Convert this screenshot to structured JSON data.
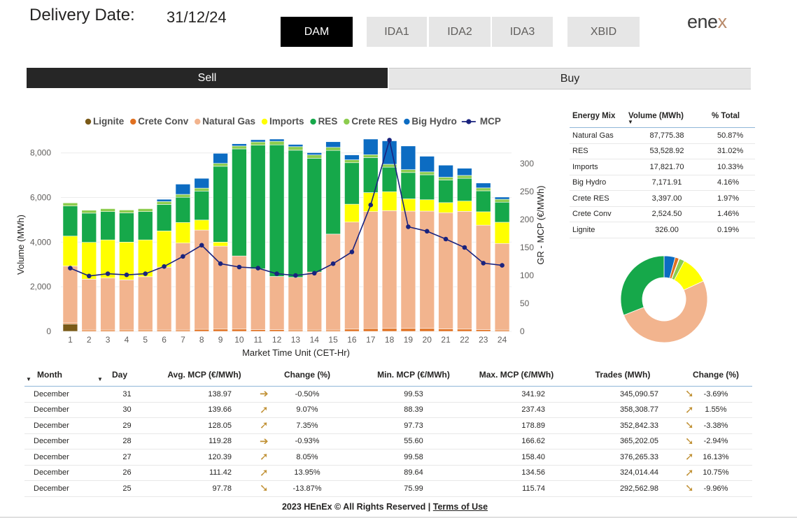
{
  "header": {
    "delivery_label": "Delivery Date:",
    "delivery_date": "31/12/24",
    "market_tabs": [
      {
        "label": "DAM",
        "active": true
      },
      {
        "label": "IDA1",
        "active": false
      },
      {
        "label": "IDA2",
        "active": false
      },
      {
        "label": "IDA3",
        "active": false
      },
      {
        "label": "XBID",
        "active": false
      }
    ],
    "logo_text": "ene",
    "logo_x": "x"
  },
  "side_tabs": [
    {
      "label": "Sell",
      "active": true
    },
    {
      "label": "Buy",
      "active": false
    }
  ],
  "chart_data": {
    "type": "bar",
    "stacked": true,
    "xlabel": "Market Time Unit (CET-Hr)",
    "ylabel": "Volume (MWh)",
    "y2label": "GR - MCP (€/MWh)",
    "ylim": [
      0,
      8900
    ],
    "y2lim": [
      0,
      355
    ],
    "yticks": [
      0,
      2000,
      4000,
      6000,
      8000
    ],
    "ytick_labels": [
      "0",
      "2,000",
      "4,000",
      "6,000",
      "8,000"
    ],
    "y2ticks": [
      0,
      50,
      100,
      150,
      200,
      250,
      300
    ],
    "legend_position": "top",
    "categories": [
      "1",
      "2",
      "3",
      "4",
      "5",
      "6",
      "7",
      "8",
      "9",
      "10",
      "11",
      "12",
      "13",
      "14",
      "15",
      "16",
      "17",
      "18",
      "19",
      "20",
      "21",
      "22",
      "23",
      "24"
    ],
    "series": [
      {
        "name": "Lignite",
        "color": "#7a5a18",
        "values": [
          330,
          0,
          0,
          0,
          0,
          0,
          0,
          0,
          0,
          0,
          0,
          0,
          0,
          0,
          0,
          0,
          0,
          0,
          0,
          0,
          0,
          0,
          0,
          0
        ]
      },
      {
        "name": "Crete Conv",
        "color": "#e07020",
        "values": [
          50,
          60,
          60,
          60,
          60,
          60,
          60,
          90,
          100,
          100,
          80,
          80,
          60,
          60,
          60,
          100,
          120,
          130,
          130,
          130,
          110,
          100,
          80,
          60
        ]
      },
      {
        "name": "Natural Gas",
        "color": "#f2b48e",
        "values": [
          2550,
          2280,
          2330,
          2250,
          2390,
          2820,
          3900,
          4450,
          3720,
          3280,
          2720,
          2380,
          2360,
          2600,
          4300,
          4800,
          5250,
          5280,
          5260,
          5260,
          5210,
          5280,
          4680,
          3880
        ]
      },
      {
        "name": "Imports",
        "color": "#ffff00",
        "values": [
          1340,
          1650,
          1710,
          1690,
          1650,
          1620,
          920,
          450,
          180,
          0,
          0,
          0,
          0,
          0,
          0,
          800,
          850,
          850,
          550,
          510,
          450,
          460,
          600,
          950
        ]
      },
      {
        "name": "RES",
        "color": "#16a84a",
        "values": [
          1350,
          1310,
          1270,
          1310,
          1270,
          1190,
          1130,
          1300,
          3400,
          4800,
          5550,
          5900,
          5700,
          5100,
          3750,
          1860,
          1570,
          1100,
          1180,
          1120,
          1010,
          1020,
          940,
          900
        ]
      },
      {
        "name": "Crete RES",
        "color": "#8ccc4e",
        "values": [
          140,
          130,
          130,
          130,
          130,
          130,
          130,
          130,
          130,
          130,
          140,
          160,
          160,
          150,
          140,
          130,
          130,
          130,
          130,
          130,
          130,
          130,
          130,
          130
        ]
      },
      {
        "name": "Big Hydro",
        "color": "#0c6cc2",
        "values": [
          0,
          0,
          0,
          0,
          0,
          100,
          460,
          440,
          450,
          100,
          100,
          100,
          100,
          100,
          250,
          220,
          700,
          1050,
          1060,
          700,
          540,
          320,
          220,
          100
        ]
      }
    ],
    "line": {
      "name": "MCP",
      "color": "#1a237e",
      "values": [
        113,
        99,
        103,
        101,
        103,
        116,
        134,
        154,
        121,
        115,
        113,
        103,
        100,
        104,
        121,
        142,
        226,
        342,
        187,
        179,
        165,
        150,
        122,
        118
      ]
    }
  },
  "energy_mix": {
    "headers": {
      "source": "Energy Mix",
      "volume": "Volume (MWh)",
      "pct": "% Total"
    },
    "rows": [
      {
        "name": "Natural Gas",
        "volume": "87,775.38",
        "pct": "50.87%",
        "value": 50.87,
        "color": "#f2b48e"
      },
      {
        "name": "RES",
        "volume": "53,528.92",
        "pct": "31.02%",
        "value": 31.02,
        "color": "#16a84a"
      },
      {
        "name": "Imports",
        "volume": "17,821.70",
        "pct": "10.33%",
        "value": 10.33,
        "color": "#ffff00"
      },
      {
        "name": "Big Hydro",
        "volume": "7,171.91",
        "pct": "4.16%",
        "value": 4.16,
        "color": "#0c6cc2"
      },
      {
        "name": "Crete RES",
        "volume": "3,397.00",
        "pct": "1.97%",
        "value": 1.97,
        "color": "#8ccc4e"
      },
      {
        "name": "Crete Conv",
        "volume": "2,524.50",
        "pct": "1.46%",
        "value": 1.46,
        "color": "#e07020"
      },
      {
        "name": "Lignite",
        "volume": "326.00",
        "pct": "0.19%",
        "value": 0.19,
        "color": "#7a5a18"
      }
    ]
  },
  "daily_table": {
    "headers": [
      "Month",
      "Day",
      "Avg. MCP (€/MWh)",
      "Change (%)",
      "Min. MCP (€/MWh)",
      "Max. MCP (€/MWh)",
      "Trades (MWh)",
      "Change (%)"
    ],
    "rows": [
      {
        "month": "December",
        "day": "31",
        "avg": "138.97",
        "mcp_arrow": "right-arrow-icon",
        "mcp_change": "-0.50%",
        "min": "99.53",
        "max": "341.92",
        "trades": "345,090.57",
        "trade_arrow": "down-right-arrow-icon",
        "trade_change": "-3.69%"
      },
      {
        "month": "December",
        "day": "30",
        "avg": "139.66",
        "mcp_arrow": "up-right-arrow-icon",
        "mcp_change": "9.07%",
        "min": "88.39",
        "max": "237.43",
        "trades": "358,308.77",
        "trade_arrow": "up-right-arrow-icon",
        "trade_change": "1.55%"
      },
      {
        "month": "December",
        "day": "29",
        "avg": "128.05",
        "mcp_arrow": "up-right-arrow-icon",
        "mcp_change": "7.35%",
        "min": "97.73",
        "max": "178.89",
        "trades": "352,842.33",
        "trade_arrow": "down-right-arrow-icon",
        "trade_change": "-3.38%"
      },
      {
        "month": "December",
        "day": "28",
        "avg": "119.28",
        "mcp_arrow": "right-arrow-icon",
        "mcp_change": "-0.93%",
        "min": "55.60",
        "max": "166.62",
        "trades": "365,202.05",
        "trade_arrow": "down-right-arrow-icon",
        "trade_change": "-2.94%"
      },
      {
        "month": "December",
        "day": "27",
        "avg": "120.39",
        "mcp_arrow": "up-right-arrow-icon",
        "mcp_change": "8.05%",
        "min": "99.58",
        "max": "158.40",
        "trades": "376,265.33",
        "trade_arrow": "up-right-arrow-icon",
        "trade_change": "16.13%"
      },
      {
        "month": "December",
        "day": "26",
        "avg": "111.42",
        "mcp_arrow": "up-right-arrow-icon",
        "mcp_change": "13.95%",
        "min": "89.64",
        "max": "134.56",
        "trades": "324,014.44",
        "trade_arrow": "up-right-arrow-icon",
        "trade_change": "10.75%"
      },
      {
        "month": "December",
        "day": "25",
        "avg": "97.78",
        "mcp_arrow": "down-right-arrow-icon",
        "mcp_change": "-13.87%",
        "min": "75.99",
        "max": "115.74",
        "trades": "292,562.98",
        "trade_arrow": "down-right-arrow-icon",
        "trade_change": "-9.96%"
      }
    ]
  },
  "footer": {
    "copyright": "2023 HEnEx © All Rights Reserved | ",
    "terms": "Terms of Use"
  }
}
